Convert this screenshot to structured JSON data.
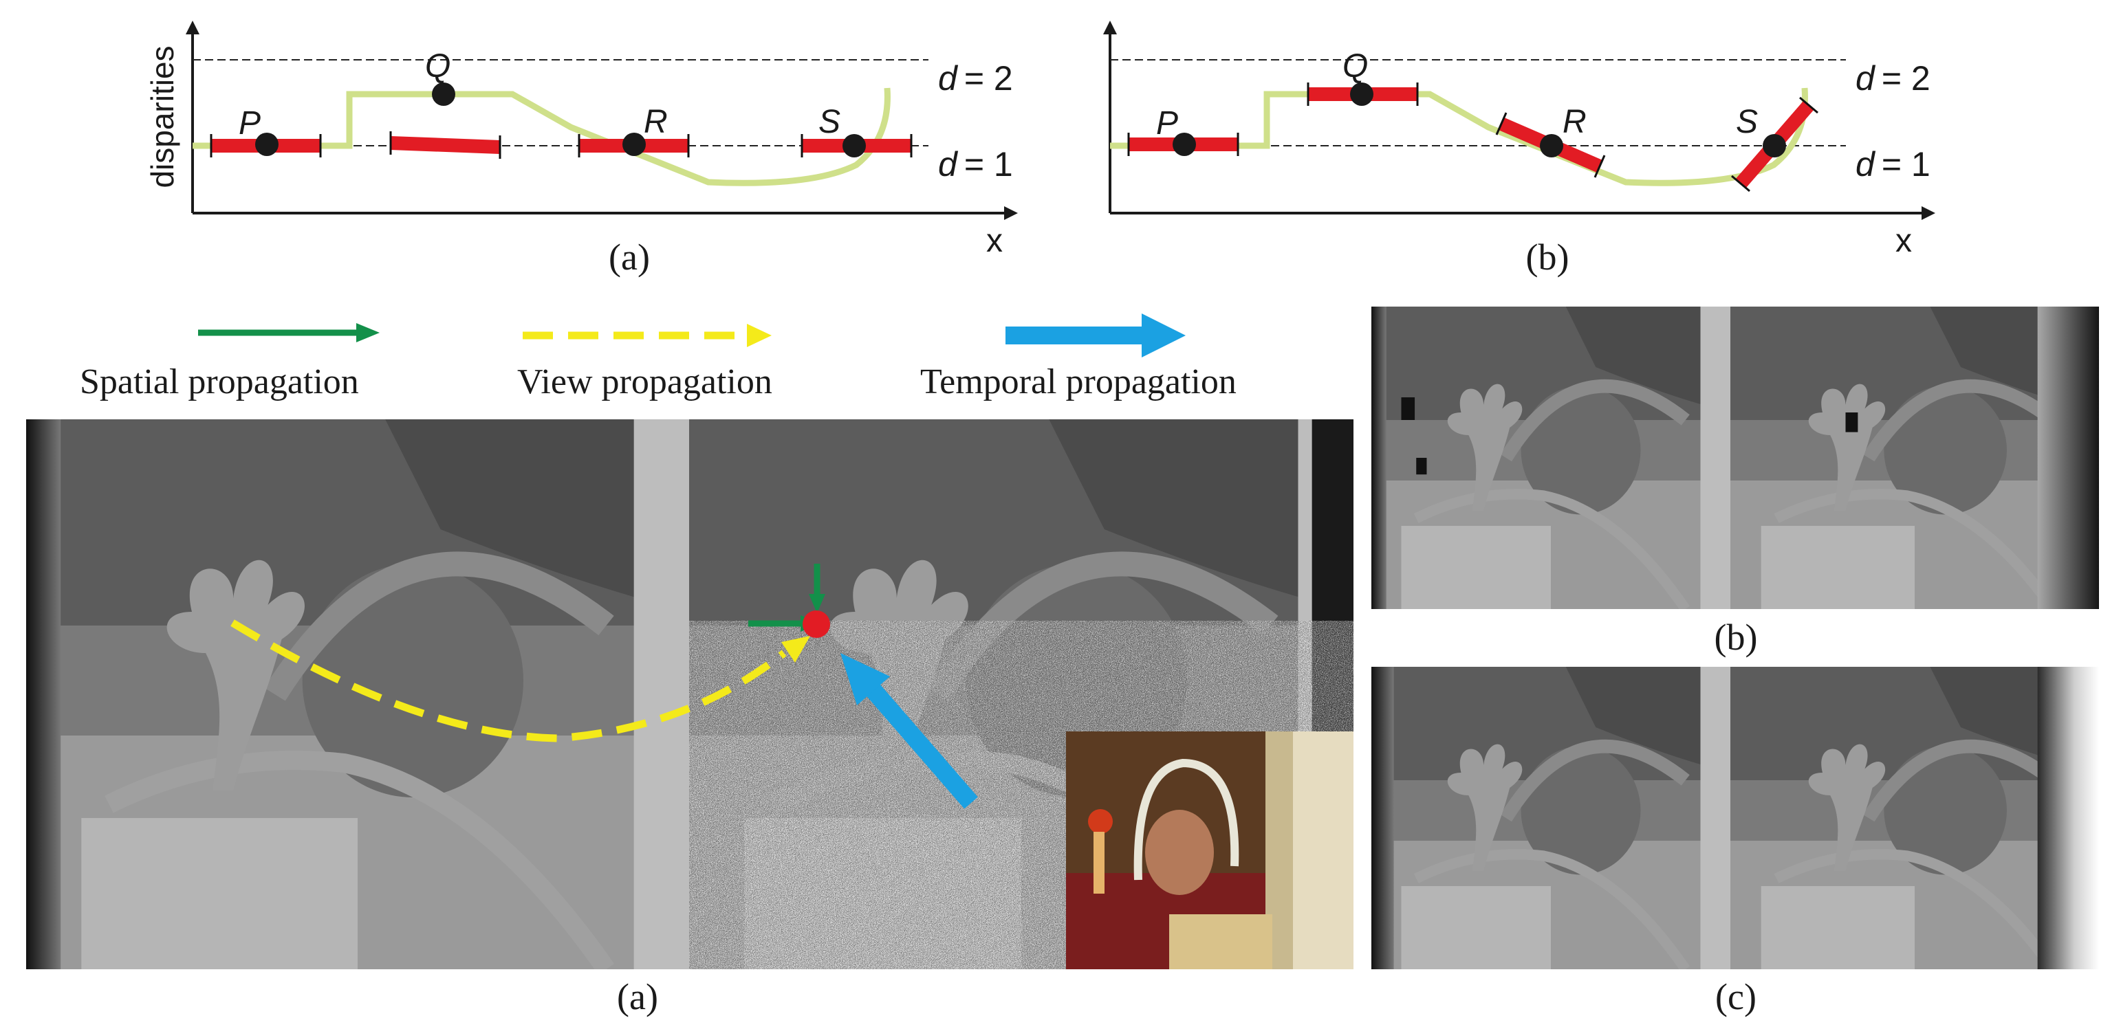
{
  "plots": {
    "a": {
      "ylabel": "disparities",
      "xlabel": "x",
      "caption": "(a)",
      "level_top_d": "d",
      "level_top_val": "= 2",
      "level_bot_d": "d",
      "level_bot_val": "= 1",
      "points": [
        "P",
        "Q",
        "R",
        "S"
      ]
    },
    "b": {
      "xlabel": "x",
      "caption": "(b)",
      "level_top_d": "d",
      "level_top_val": "= 2",
      "level_bot_d": "d",
      "level_bot_val": "= 1",
      "points": [
        "P",
        "Q",
        "R",
        "S"
      ]
    }
  },
  "legend": {
    "spatial": "Spatial propagation",
    "view": "View propagation",
    "temporal": "Temporal propagation"
  },
  "captions": {
    "main": "(a)",
    "right_top": "(b)",
    "right_bottom": "(c)"
  },
  "colors": {
    "spatial_arrow": "#13904a",
    "view_arrow": "#f4ea1a",
    "temporal_arrow": "#1ba1e2",
    "plane_segment": "#e21c24",
    "surface_curve": "#cfe08a",
    "pixel_marker": "#e21c24"
  }
}
